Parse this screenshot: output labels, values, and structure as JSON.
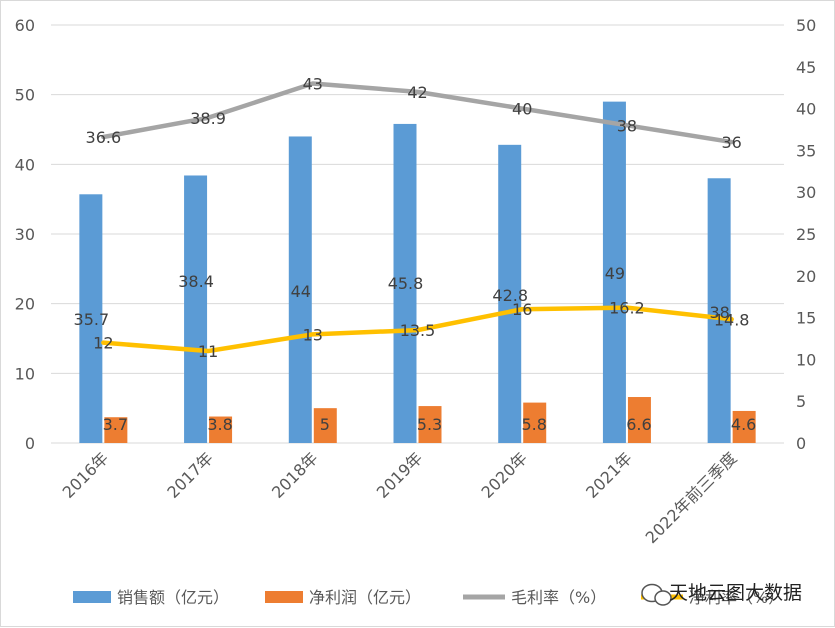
{
  "chart_data": {
    "type": "bar",
    "categories": [
      "2016年",
      "2017年",
      "2018年",
      "2019年",
      "2020年",
      "2021年",
      "2022年前三季度"
    ],
    "series": [
      {
        "name": "销售额（亿元）",
        "type": "bar",
        "axis": "left",
        "color": "#5b9bd5",
        "values": [
          35.7,
          38.4,
          44,
          45.8,
          42.8,
          49,
          38
        ]
      },
      {
        "name": "净利润（亿元）",
        "type": "bar",
        "axis": "left",
        "color": "#ed7d31",
        "values": [
          3.7,
          3.8,
          5,
          5.3,
          5.8,
          6.6,
          4.6
        ]
      },
      {
        "name": "毛利率（%）",
        "type": "line",
        "axis": "right",
        "color": "#a5a5a5",
        "values": [
          36.6,
          38.9,
          43,
          42,
          40,
          38,
          36
        ]
      },
      {
        "name": "净利率（%）",
        "type": "line",
        "axis": "right",
        "color": "#ffc000",
        "values": [
          12,
          11,
          13,
          13.5,
          16,
          16.2,
          14.8
        ]
      }
    ],
    "y_left": {
      "lim": [
        0,
        60
      ],
      "ticks": [
        "0",
        "10",
        "20",
        "30",
        "40",
        "50",
        "60"
      ]
    },
    "y_right": {
      "lim": [
        0,
        50
      ],
      "ticks": [
        "0",
        "5",
        "10",
        "15",
        "20",
        "25",
        "30",
        "35",
        "40",
        "45",
        "50"
      ]
    },
    "grid": true,
    "legend": "bottom"
  },
  "watermark": {
    "text": "天地云图大数据",
    "icon": "wechat-icon"
  }
}
